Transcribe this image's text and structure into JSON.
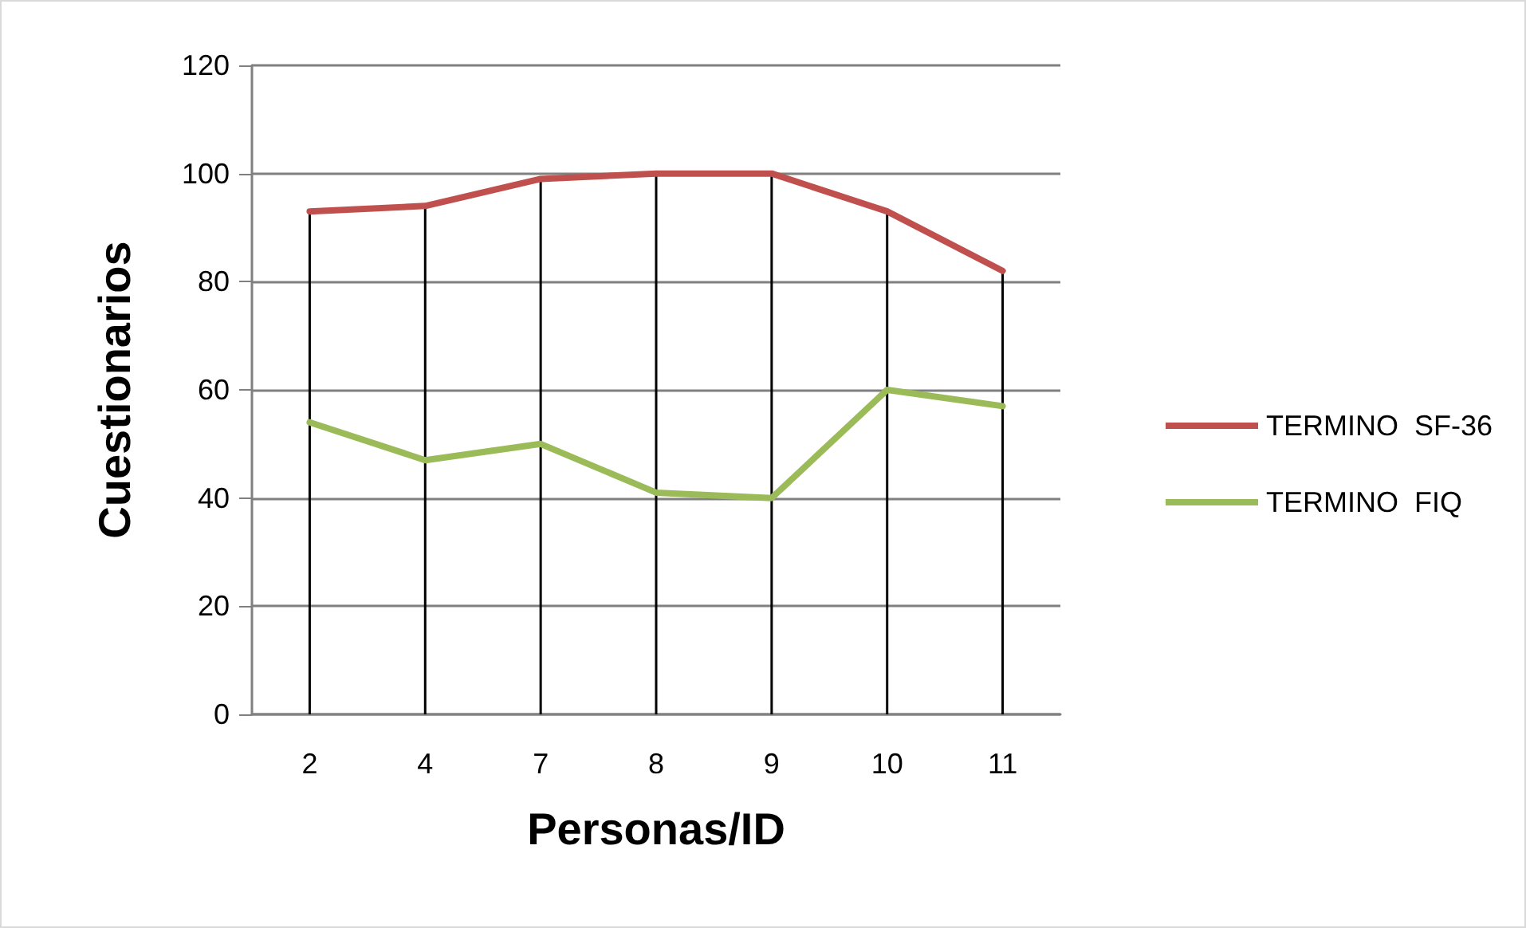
{
  "chart_data": {
    "type": "line",
    "xlabel": "Personas/ID",
    "ylabel": "Cuestionarios",
    "categories": [
      "2",
      "4",
      "7",
      "8",
      "9",
      "10",
      "11"
    ],
    "series": [
      {
        "name": "TERMINO  SF-36",
        "color": "#c0504d",
        "values": [
          93,
          94,
          99,
          100,
          100,
          93,
          82
        ],
        "errors": [
          [
            0,
            93
          ],
          [
            0,
            94
          ],
          [
            0,
            99
          ],
          [
            0,
            100
          ],
          [
            0,
            100
          ],
          [
            0,
            93
          ],
          [
            0,
            82
          ]
        ]
      },
      {
        "name": "TERMINO  FIQ",
        "color": "#9bbb59",
        "values": [
          54,
          47,
          50,
          41,
          40,
          60,
          57
        ]
      }
    ],
    "ylim": [
      0,
      120
    ],
    "yticks": [
      0,
      20,
      40,
      60,
      80,
      100,
      120
    ],
    "grid": "y",
    "legend": "right",
    "marker": "none",
    "line_style": "solid"
  }
}
